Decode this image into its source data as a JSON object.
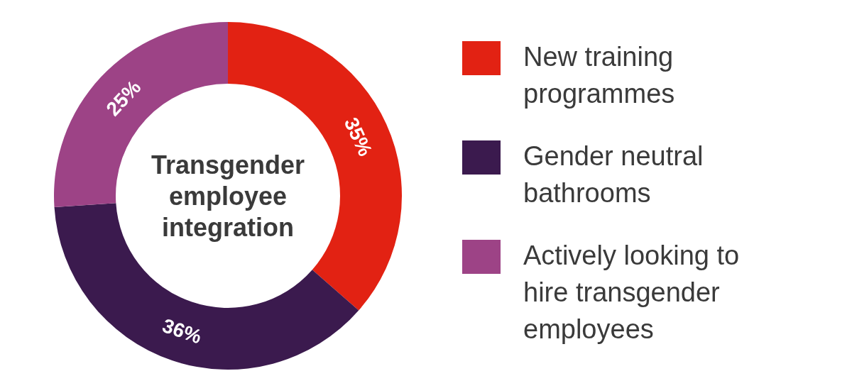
{
  "chart_data": {
    "type": "donut",
    "title": "Transgender employee integration",
    "categories": [
      "New training programmes",
      "Gender neutral bathrooms",
      "Actively looking to hire transgender employees"
    ],
    "values": [
      35,
      36,
      25
    ],
    "colors": [
      "#e22213",
      "#3b1a4e",
      "#9d4386"
    ],
    "value_labels": [
      "35%",
      "36%",
      "25%"
    ],
    "legend": "right"
  }
}
